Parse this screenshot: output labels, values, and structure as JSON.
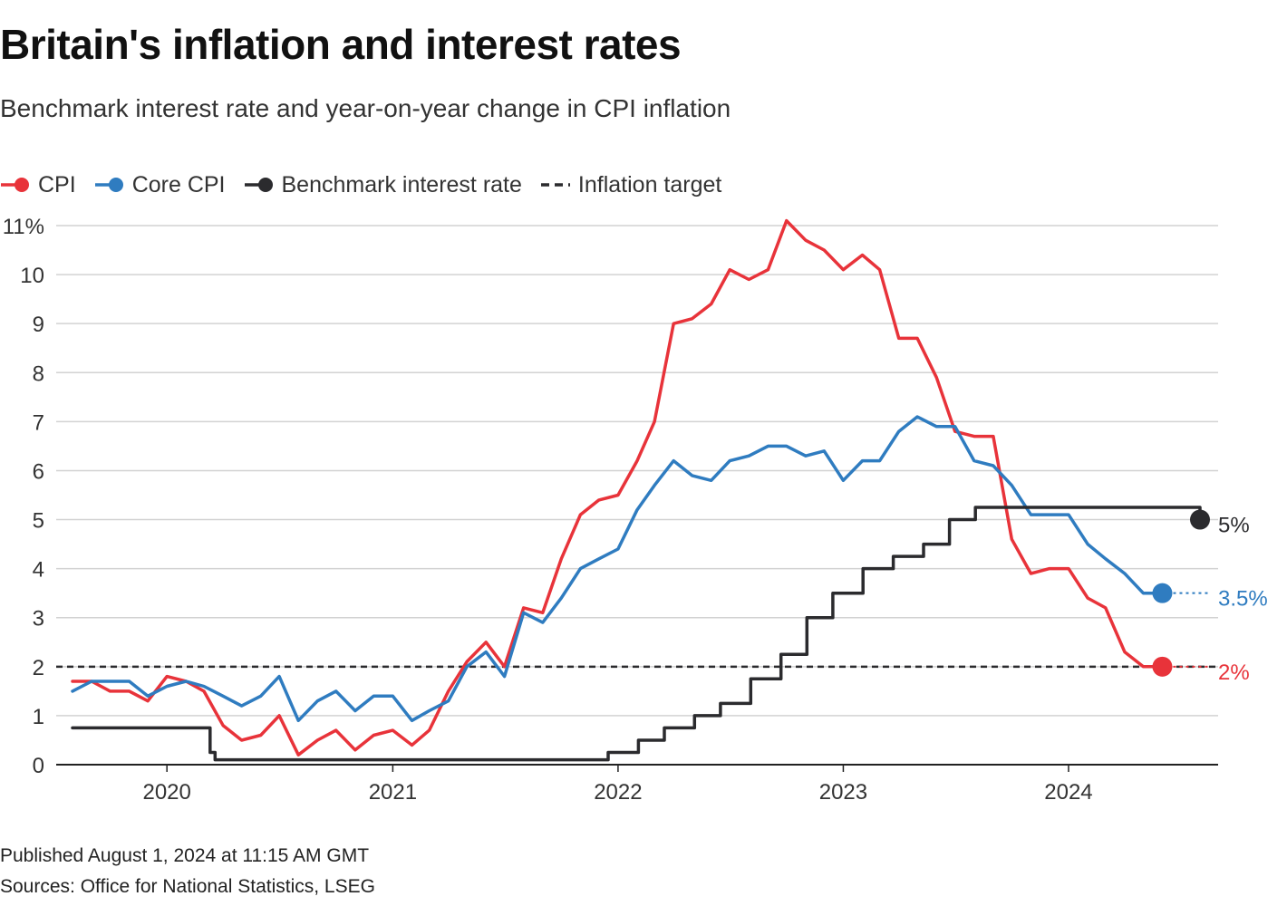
{
  "title": "Britain's inflation and interest rates",
  "subtitle": "Benchmark interest rate and year-on-year change in CPI inflation",
  "published": "Published August 1, 2024 at 11:15 AM GMT",
  "sources": "Sources: Office for National Statistics, LSEG",
  "colors": {
    "cpi": "#e8333a",
    "core": "#2f7cc0",
    "rate": "#2b2b2e",
    "target": "#2b2b2e",
    "grid": "#d2d2d2",
    "axis": "#222222"
  },
  "chart_data": {
    "type": "line",
    "ylim": [
      0,
      11
    ],
    "y_ticks": [
      0,
      1,
      2,
      3,
      4,
      5,
      6,
      7,
      8,
      9,
      10,
      11
    ],
    "y_tick_labels": [
      "0",
      "1",
      "2",
      "3",
      "4",
      "5",
      "6",
      "7",
      "8",
      "9",
      "10",
      "11%"
    ],
    "xlim": [
      "2019-08-01",
      "2024-08-01"
    ],
    "x_ticks": [
      {
        "date": "2020-01-01",
        "label": "2020"
      },
      {
        "date": "2021-01-01",
        "label": "2021"
      },
      {
        "date": "2022-01-01",
        "label": "2022"
      },
      {
        "date": "2023-01-01",
        "label": "2023"
      },
      {
        "date": "2024-01-01",
        "label": "2024"
      }
    ],
    "legend_placement": "top-left",
    "grid": true,
    "series": [
      {
        "key": "cpi",
        "name": "CPI",
        "color": "#e8333a",
        "step": false,
        "end_label": "2%",
        "points": [
          [
            "2019-08-01",
            1.7
          ],
          [
            "2019-09-01",
            1.7
          ],
          [
            "2019-10-01",
            1.5
          ],
          [
            "2019-11-01",
            1.5
          ],
          [
            "2019-12-01",
            1.3
          ],
          [
            "2020-01-01",
            1.8
          ],
          [
            "2020-02-01",
            1.7
          ],
          [
            "2020-03-01",
            1.5
          ],
          [
            "2020-04-01",
            0.8
          ],
          [
            "2020-05-01",
            0.5
          ],
          [
            "2020-06-01",
            0.6
          ],
          [
            "2020-07-01",
            1.0
          ],
          [
            "2020-08-01",
            0.2
          ],
          [
            "2020-09-01",
            0.5
          ],
          [
            "2020-10-01",
            0.7
          ],
          [
            "2020-11-01",
            0.3
          ],
          [
            "2020-12-01",
            0.6
          ],
          [
            "2021-01-01",
            0.7
          ],
          [
            "2021-02-01",
            0.4
          ],
          [
            "2021-03-01",
            0.7
          ],
          [
            "2021-04-01",
            1.5
          ],
          [
            "2021-05-01",
            2.1
          ],
          [
            "2021-06-01",
            2.5
          ],
          [
            "2021-07-01",
            2.0
          ],
          [
            "2021-08-01",
            3.2
          ],
          [
            "2021-09-01",
            3.1
          ],
          [
            "2021-10-01",
            4.2
          ],
          [
            "2021-11-01",
            5.1
          ],
          [
            "2021-12-01",
            5.4
          ],
          [
            "2022-01-01",
            5.5
          ],
          [
            "2022-02-01",
            6.2
          ],
          [
            "2022-03-01",
            7.0
          ],
          [
            "2022-04-01",
            9.0
          ],
          [
            "2022-05-01",
            9.1
          ],
          [
            "2022-06-01",
            9.4
          ],
          [
            "2022-07-01",
            10.1
          ],
          [
            "2022-08-01",
            9.9
          ],
          [
            "2022-09-01",
            10.1
          ],
          [
            "2022-10-01",
            11.1
          ],
          [
            "2022-11-01",
            10.7
          ],
          [
            "2022-12-01",
            10.5
          ],
          [
            "2023-01-01",
            10.1
          ],
          [
            "2023-02-01",
            10.4
          ],
          [
            "2023-03-01",
            10.1
          ],
          [
            "2023-04-01",
            8.7
          ],
          [
            "2023-05-01",
            8.7
          ],
          [
            "2023-06-01",
            7.9
          ],
          [
            "2023-07-01",
            6.8
          ],
          [
            "2023-08-01",
            6.7
          ],
          [
            "2023-09-01",
            6.7
          ],
          [
            "2023-10-01",
            4.6
          ],
          [
            "2023-11-01",
            3.9
          ],
          [
            "2023-12-01",
            4.0
          ],
          [
            "2024-01-01",
            4.0
          ],
          [
            "2024-02-01",
            3.4
          ],
          [
            "2024-03-01",
            3.2
          ],
          [
            "2024-04-01",
            2.3
          ],
          [
            "2024-05-01",
            2.0
          ],
          [
            "2024-06-01",
            2.0
          ]
        ]
      },
      {
        "key": "core",
        "name": "Core CPI",
        "color": "#2f7cc0",
        "step": false,
        "end_label": "3.5%",
        "points": [
          [
            "2019-08-01",
            1.5
          ],
          [
            "2019-09-01",
            1.7
          ],
          [
            "2019-10-01",
            1.7
          ],
          [
            "2019-11-01",
            1.7
          ],
          [
            "2019-12-01",
            1.4
          ],
          [
            "2020-01-01",
            1.6
          ],
          [
            "2020-02-01",
            1.7
          ],
          [
            "2020-03-01",
            1.6
          ],
          [
            "2020-04-01",
            1.4
          ],
          [
            "2020-05-01",
            1.2
          ],
          [
            "2020-06-01",
            1.4
          ],
          [
            "2020-07-01",
            1.8
          ],
          [
            "2020-08-01",
            0.9
          ],
          [
            "2020-09-01",
            1.3
          ],
          [
            "2020-10-01",
            1.5
          ],
          [
            "2020-11-01",
            1.1
          ],
          [
            "2020-12-01",
            1.4
          ],
          [
            "2021-01-01",
            1.4
          ],
          [
            "2021-02-01",
            0.9
          ],
          [
            "2021-03-01",
            1.1
          ],
          [
            "2021-04-01",
            1.3
          ],
          [
            "2021-05-01",
            2.0
          ],
          [
            "2021-06-01",
            2.3
          ],
          [
            "2021-07-01",
            1.8
          ],
          [
            "2021-08-01",
            3.1
          ],
          [
            "2021-09-01",
            2.9
          ],
          [
            "2021-10-01",
            3.4
          ],
          [
            "2021-11-01",
            4.0
          ],
          [
            "2021-12-01",
            4.2
          ],
          [
            "2022-01-01",
            4.4
          ],
          [
            "2022-02-01",
            5.2
          ],
          [
            "2022-03-01",
            5.7
          ],
          [
            "2022-04-01",
            6.2
          ],
          [
            "2022-05-01",
            5.9
          ],
          [
            "2022-06-01",
            5.8
          ],
          [
            "2022-07-01",
            6.2
          ],
          [
            "2022-08-01",
            6.3
          ],
          [
            "2022-09-01",
            6.5
          ],
          [
            "2022-10-01",
            6.5
          ],
          [
            "2022-11-01",
            6.3
          ],
          [
            "2022-12-01",
            6.4
          ],
          [
            "2023-01-01",
            5.8
          ],
          [
            "2023-02-01",
            6.2
          ],
          [
            "2023-03-01",
            6.2
          ],
          [
            "2023-04-01",
            6.8
          ],
          [
            "2023-05-01",
            7.1
          ],
          [
            "2023-06-01",
            6.9
          ],
          [
            "2023-07-01",
            6.9
          ],
          [
            "2023-08-01",
            6.2
          ],
          [
            "2023-09-01",
            6.1
          ],
          [
            "2023-10-01",
            5.7
          ],
          [
            "2023-11-01",
            5.1
          ],
          [
            "2023-12-01",
            5.1
          ],
          [
            "2024-01-01",
            5.1
          ],
          [
            "2024-02-01",
            4.5
          ],
          [
            "2024-03-01",
            4.2
          ],
          [
            "2024-04-01",
            3.9
          ],
          [
            "2024-05-01",
            3.5
          ],
          [
            "2024-06-01",
            3.5
          ]
        ]
      },
      {
        "key": "rate",
        "name": "Benchmark interest rate",
        "color": "#2b2b2e",
        "step": true,
        "end_label": "5%",
        "points": [
          [
            "2019-08-01",
            0.75
          ],
          [
            "2020-03-11",
            0.25
          ],
          [
            "2020-03-19",
            0.1
          ],
          [
            "2021-12-16",
            0.25
          ],
          [
            "2022-02-03",
            0.5
          ],
          [
            "2022-03-17",
            0.75
          ],
          [
            "2022-05-05",
            1.0
          ],
          [
            "2022-06-16",
            1.25
          ],
          [
            "2022-08-04",
            1.75
          ],
          [
            "2022-09-22",
            2.25
          ],
          [
            "2022-11-03",
            3.0
          ],
          [
            "2022-12-15",
            3.5
          ],
          [
            "2023-02-02",
            4.0
          ],
          [
            "2023-03-23",
            4.25
          ],
          [
            "2023-05-11",
            4.5
          ],
          [
            "2023-06-22",
            5.0
          ],
          [
            "2023-08-03",
            5.25
          ],
          [
            "2024-08-01",
            5.0
          ]
        ],
        "end_date": "2024-08-01"
      }
    ],
    "target": {
      "name": "Inflation target",
      "value": 2
    }
  }
}
